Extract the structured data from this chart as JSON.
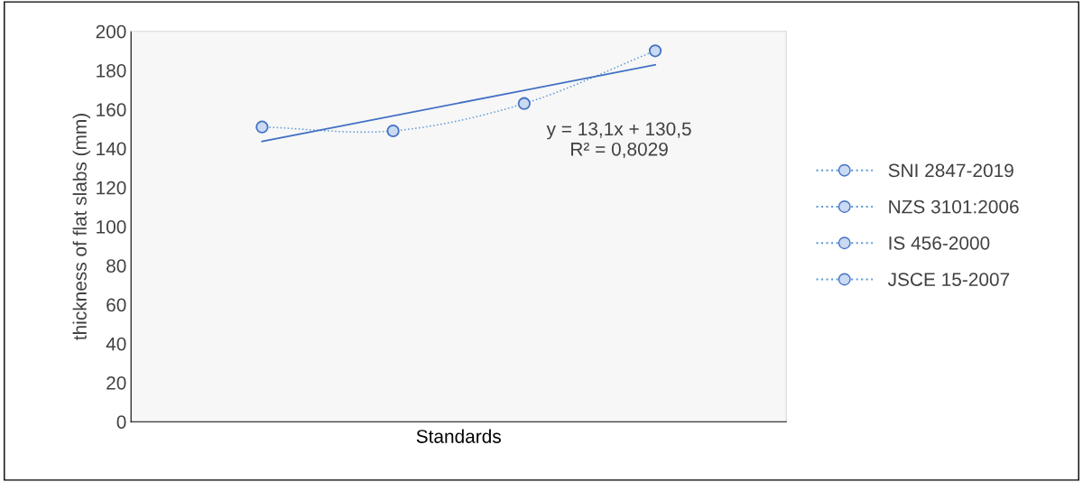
{
  "chart_data": {
    "type": "line",
    "xlabel": "Standards",
    "ylabel": "thickness of flat slabs (mm)",
    "categories": [
      null,
      null,
      null,
      null
    ],
    "series": [
      {
        "name": "SNI 2847-2019",
        "type": "scatter",
        "marker": "circle",
        "color": "#4472c4",
        "values": [
          151,
          null,
          null,
          null
        ]
      },
      {
        "name": "NZS 3101:2006",
        "type": "scatter",
        "marker": "circle",
        "color": "#4472c4",
        "values": [
          null,
          149,
          null,
          null
        ]
      },
      {
        "name": "IS 456-2000",
        "type": "scatter",
        "marker": "circle",
        "color": "#4472c4",
        "values": [
          null,
          null,
          163,
          null
        ]
      },
      {
        "name": "JSCE 15-2007",
        "type": "scatter",
        "marker": "circle",
        "color": "#4472c4",
        "values": [
          null,
          null,
          null,
          190
        ]
      },
      {
        "color": "#5b9bd5",
        "line_style": "dotted",
        "values": [
          151,
          149,
          163,
          190
        ]
      },
      {
        "color": "#4472c4",
        "line_style": "solid",
        "values": [
          143.6,
          156.7,
          169.8,
          182.9
        ]
      }
    ],
    "annotations": [
      "y = 13,1x + 130,5\nR² = 0,8029"
    ],
    "ylim": [
      0,
      200
    ],
    "yticks": [
      0,
      20,
      40,
      60,
      80,
      100,
      120,
      140,
      160,
      180,
      200
    ],
    "tick_labels": "y",
    "grid": false,
    "legend": "right"
  }
}
